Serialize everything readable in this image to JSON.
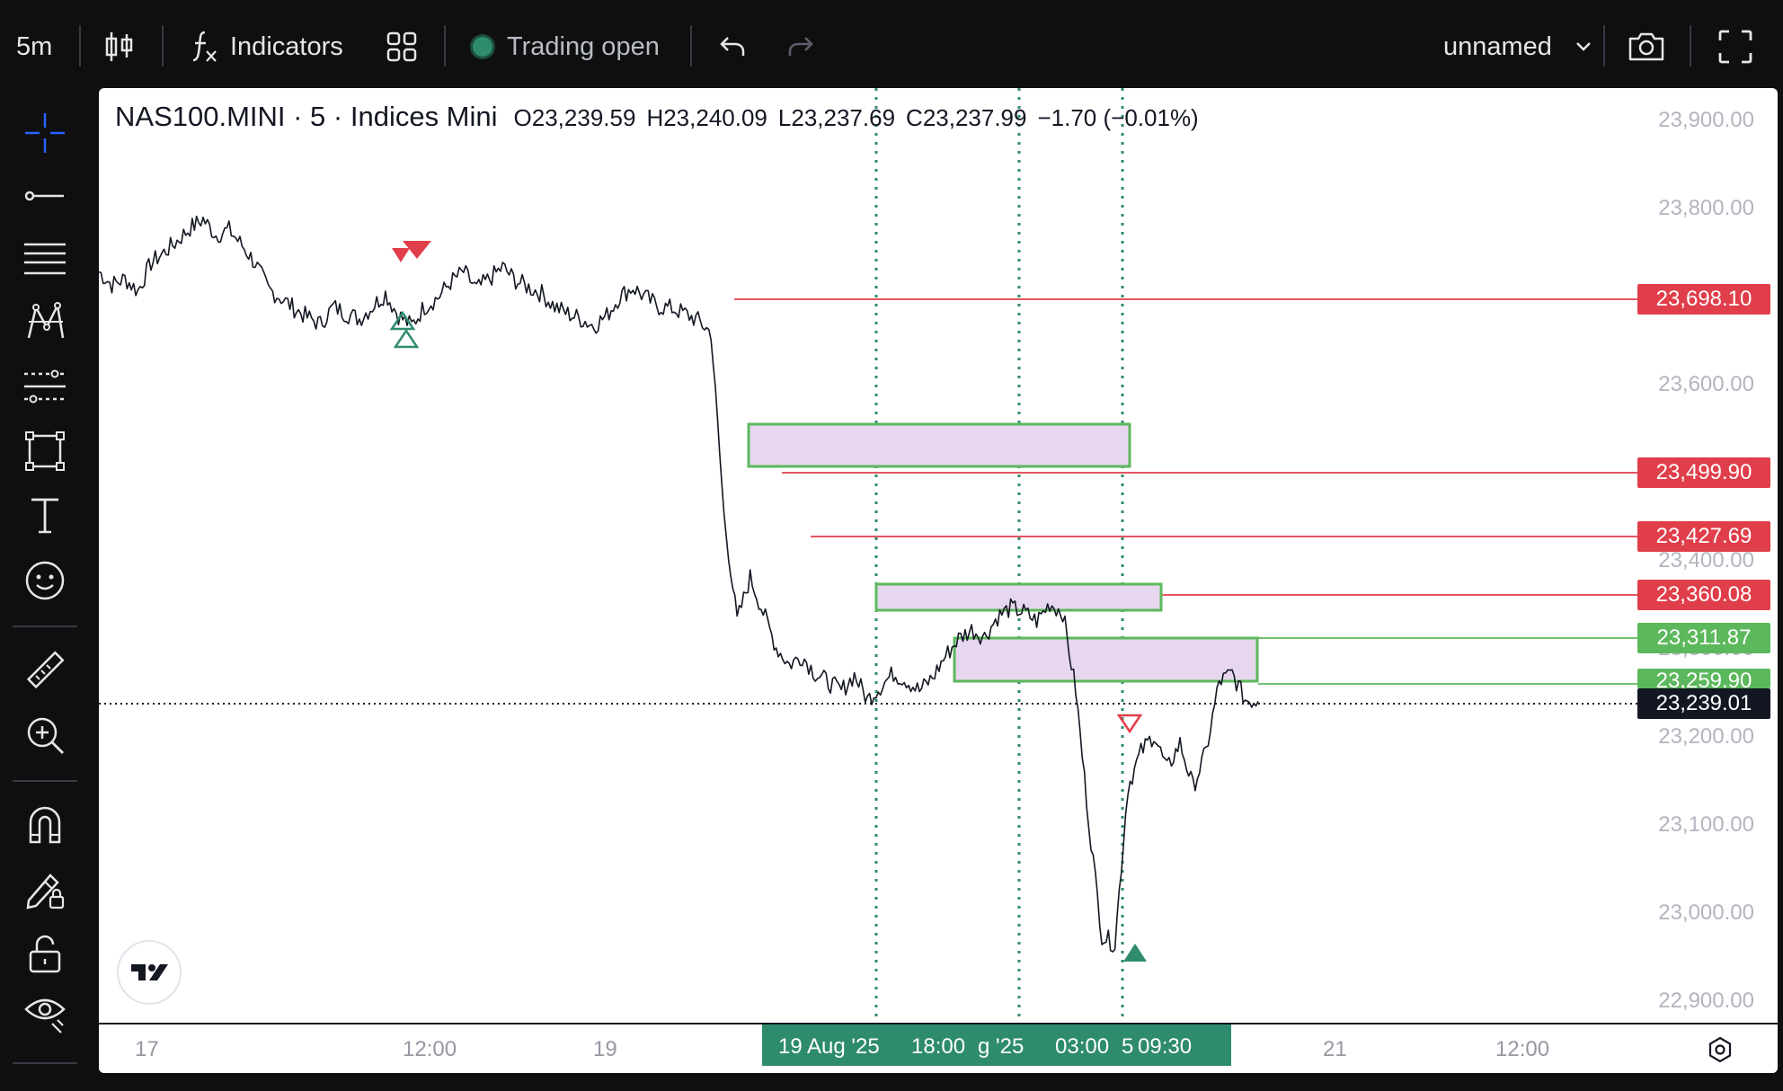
{
  "toolbar": {
    "interval": "5m",
    "indicators_label": "Indicators",
    "market_status": "Trading open",
    "layout_name": "unnamed"
  },
  "legend": {
    "symbol": "NAS100.MINI · 5 · Indices Mini",
    "open_label": "O",
    "open": "23,239.59",
    "high_label": "H",
    "high": "23,240.09",
    "low_label": "L",
    "low": "23,237.69",
    "close_label": "C",
    "close": "23,237.99",
    "change": "−1.70 (−0.01%)"
  },
  "price_axis": [
    "23,900.00",
    "23,800.00",
    "23,600.00",
    "23,400.00",
    "23,300.00",
    "23,200.00",
    "23,100.00",
    "23,000.00",
    "22,900.00"
  ],
  "price_tags": [
    {
      "value": "23,698.10",
      "color": "#e03e4a"
    },
    {
      "value": "23,499.90",
      "color": "#e03e4a"
    },
    {
      "value": "23,427.69",
      "color": "#e03e4a"
    },
    {
      "value": "23,360.08",
      "color": "#e03e4a"
    },
    {
      "value": "23,311.87",
      "color": "#5cb85c"
    },
    {
      "value": "23,259.90",
      "color": "#5cb85c"
    },
    {
      "value": "23,239.01",
      "color": "#131722"
    }
  ],
  "time_axis": [
    "17",
    "12:00",
    "19",
    "21",
    "12:00"
  ],
  "crosshair_time": {
    "a": "19 Aug '25",
    "b": "18:00",
    "c": "g '25",
    "d": "03:00",
    "e": "5",
    "f": "09:30"
  },
  "colors": {
    "up": "#2e8b6e",
    "down": "#e03e4a",
    "zone_fill": "#e7d7ee",
    "zone_border": "#5cb85c"
  },
  "chart_data": {
    "type": "line",
    "series": [
      {
        "values": [
          23730,
          23715,
          23722,
          23708,
          23740,
          23752,
          23765,
          23780,
          23790,
          23772,
          23778,
          23760,
          23740,
          23710,
          23700,
          23688,
          23678,
          23670,
          23690,
          23682,
          23676,
          23690,
          23705,
          23680,
          23668,
          23690,
          23700,
          23718,
          23730,
          23710,
          23722,
          23735,
          23720,
          23712,
          23705,
          23690,
          23682,
          23676,
          23668,
          23680,
          23702,
          23712,
          23700,
          23690,
          23688,
          23682,
          23674,
          23660,
          23450,
          23330,
          23380,
          23340,
          23300,
          23280,
          23290,
          23270,
          23260,
          23250,
          23268,
          23240,
          23255,
          23270,
          23262,
          23250,
          23265,
          23290,
          23310,
          23320,
          23312,
          23335,
          23345,
          23340,
          23330,
          23350,
          23340,
          23250,
          23100,
          22970,
          22960,
          23140,
          23180,
          23200,
          23160,
          23190,
          23140,
          23180,
          23260,
          23270,
          23240,
          23238
        ]
      }
    ],
    "ylim": [
      22870,
      23930
    ]
  }
}
